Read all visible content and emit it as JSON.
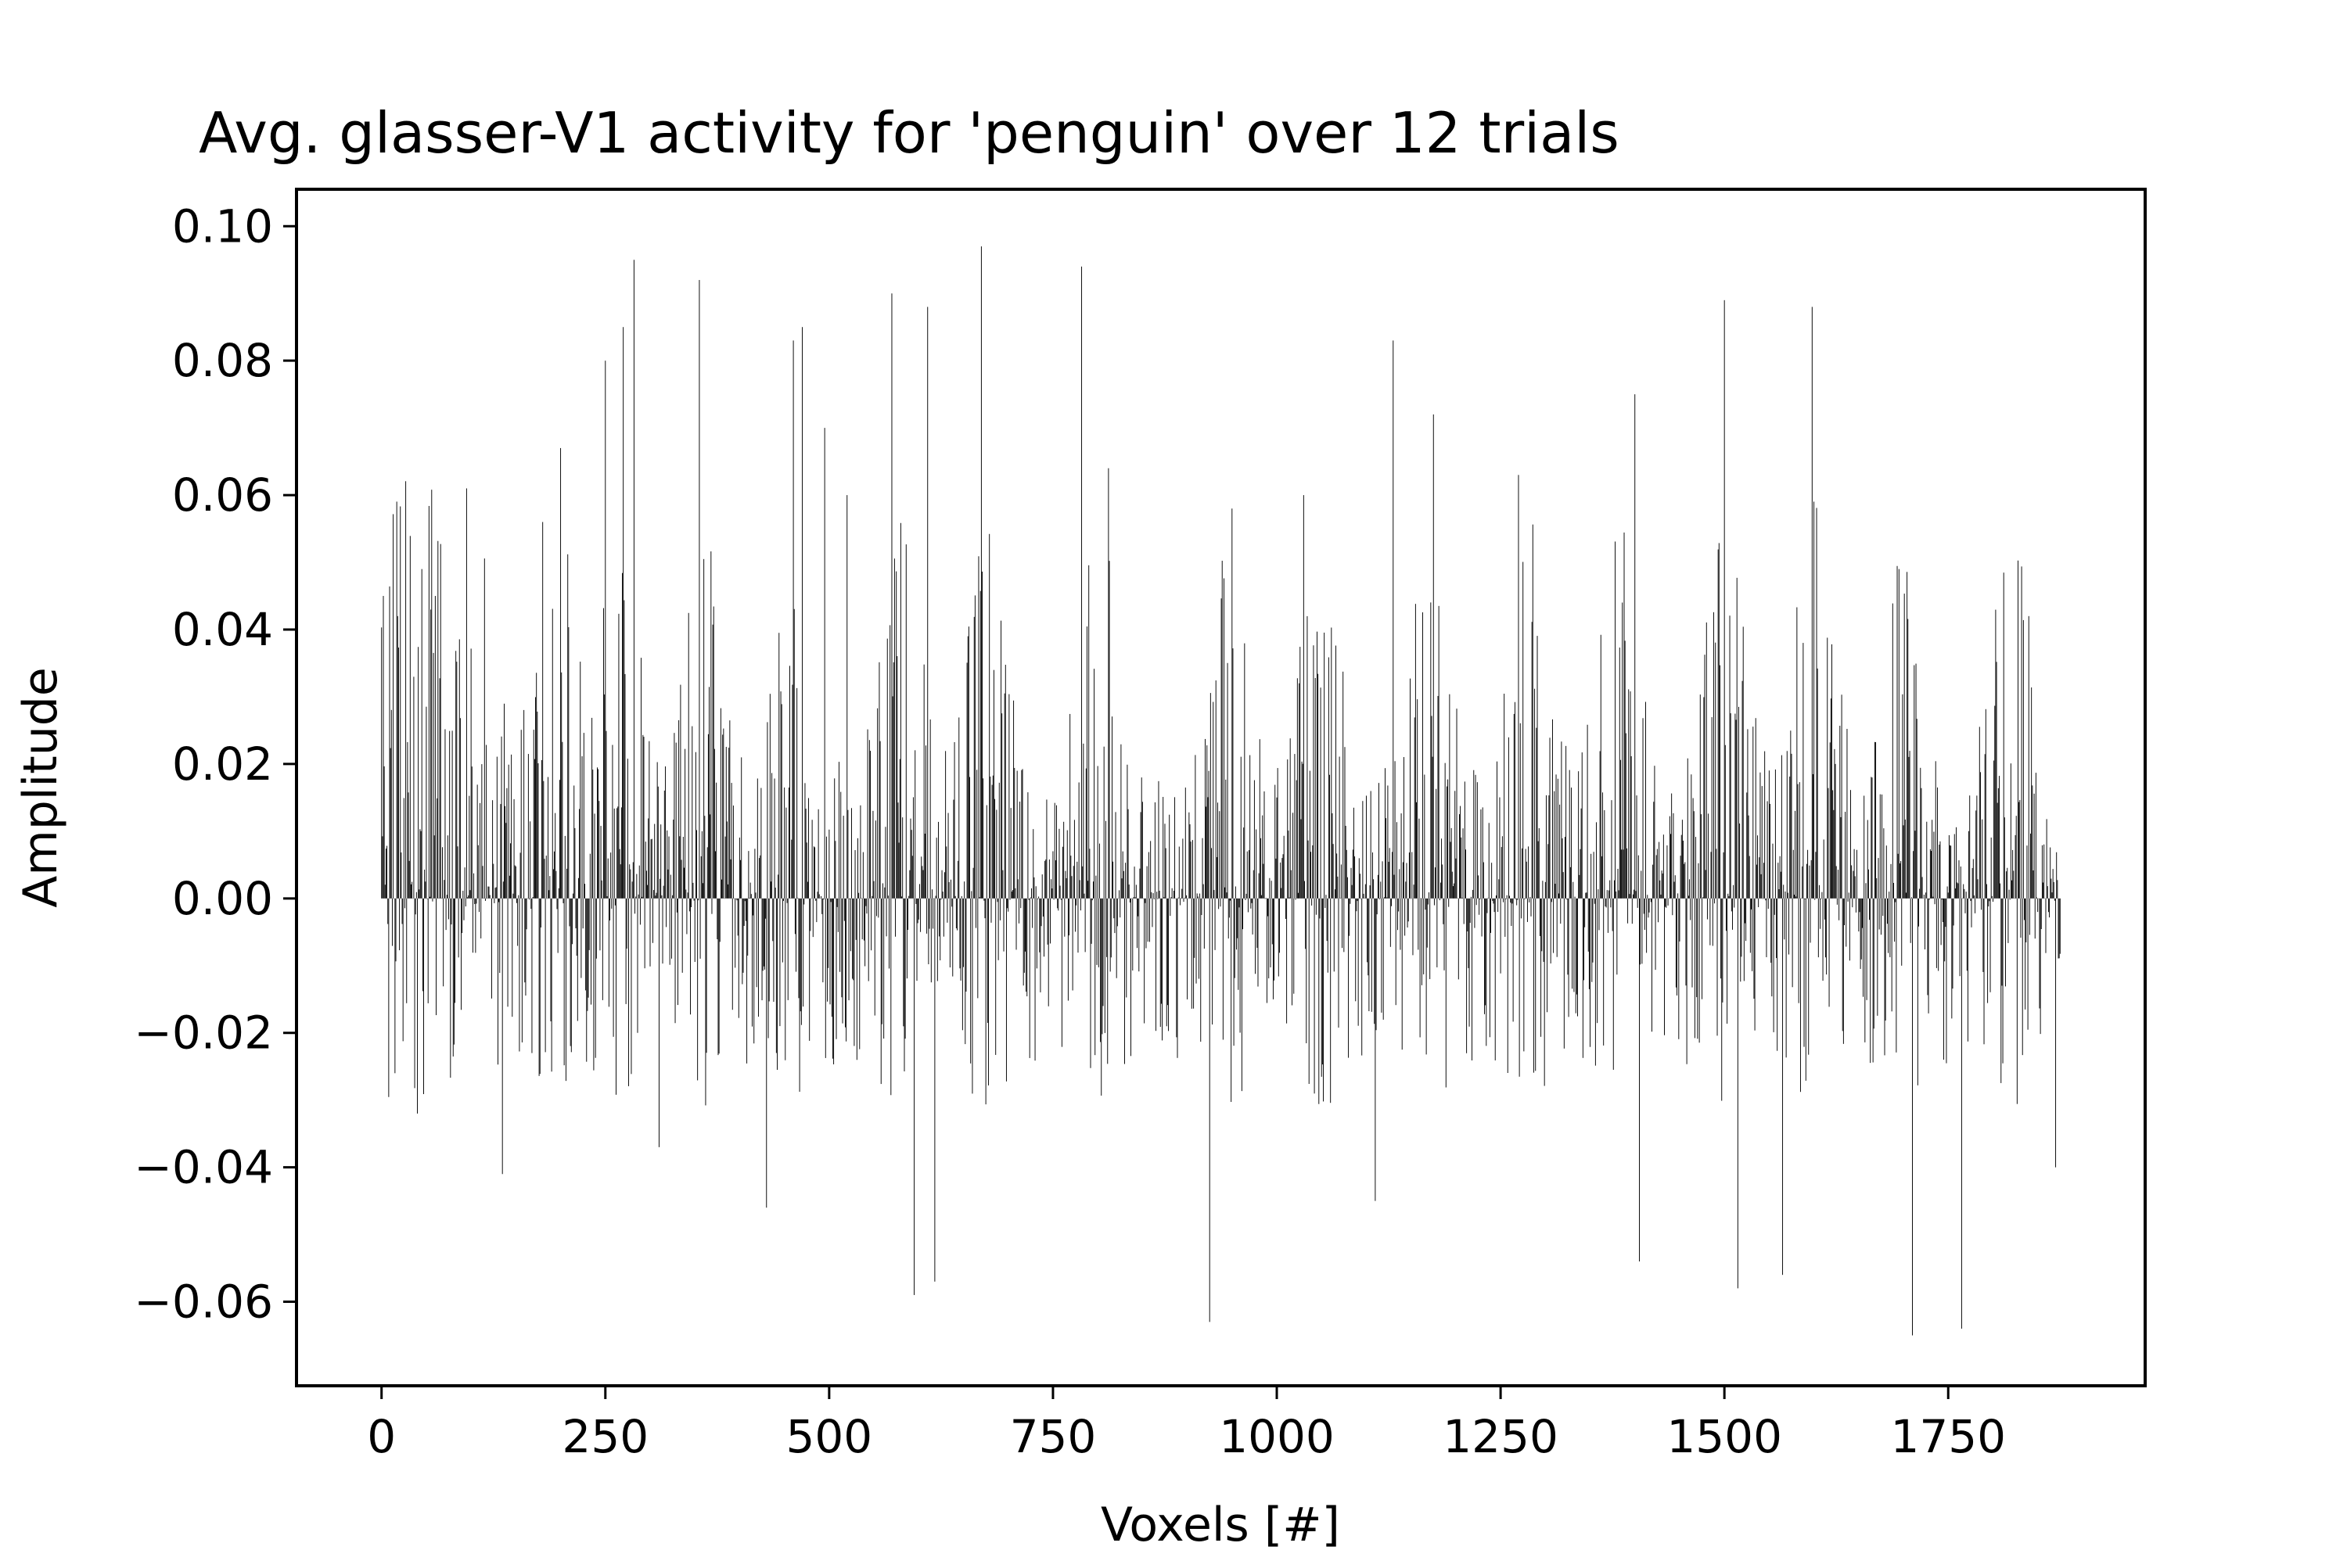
{
  "chart_data": {
    "type": "bar",
    "title": "Avg. glasser-V1 activity for 'penguin' over 12 trials",
    "xlabel": "Voxels [#]",
    "ylabel": "Amplitude",
    "n_voxels": 1876,
    "xlim": [
      -95,
      1970
    ],
    "ylim": [
      -0.0725,
      0.1055
    ],
    "xticks": [
      0,
      250,
      500,
      750,
      1000,
      1250,
      1500,
      1750
    ],
    "xtick_labels": [
      "0",
      "250",
      "500",
      "750",
      "1000",
      "1250",
      "1500",
      "1750"
    ],
    "yticks": [
      0.1,
      0.08,
      0.06,
      0.04,
      0.02,
      0.0,
      -0.02,
      -0.04,
      -0.06
    ],
    "ytick_labels": [
      "0.10",
      "0.08",
      "0.06",
      "0.04",
      "0.02",
      "0.00",
      "−0.02",
      "−0.04",
      "−0.06"
    ],
    "grid": false,
    "legend": "none",
    "bar_color": "#000000",
    "sampled_points": [
      {
        "x": 2,
        "y": 0.045
      },
      {
        "x": 18,
        "y": 0.042
      },
      {
        "x": 45,
        "y": 0.049
      },
      {
        "x": 60,
        "y": 0.045
      },
      {
        "x": 95,
        "y": 0.061
      },
      {
        "x": 180,
        "y": 0.056
      },
      {
        "x": 200,
        "y": 0.067
      },
      {
        "x": 250,
        "y": 0.08
      },
      {
        "x": 270,
        "y": 0.085
      },
      {
        "x": 282,
        "y": 0.095
      },
      {
        "x": 355,
        "y": 0.092
      },
      {
        "x": 460,
        "y": 0.083
      },
      {
        "x": 470,
        "y": 0.085
      },
      {
        "x": 495,
        "y": 0.07
      },
      {
        "x": 520,
        "y": 0.06
      },
      {
        "x": 570,
        "y": 0.09
      },
      {
        "x": 610,
        "y": 0.088
      },
      {
        "x": 670,
        "y": 0.097
      },
      {
        "x": 782,
        "y": 0.094
      },
      {
        "x": 812,
        "y": 0.064
      },
      {
        "x": 950,
        "y": 0.058
      },
      {
        "x": 1030,
        "y": 0.06
      },
      {
        "x": 1130,
        "y": 0.083
      },
      {
        "x": 1175,
        "y": 0.072
      },
      {
        "x": 1270,
        "y": 0.063
      },
      {
        "x": 1400,
        "y": 0.075
      },
      {
        "x": 1500,
        "y": 0.089
      },
      {
        "x": 1598,
        "y": 0.088
      },
      {
        "x": 1695,
        "y": 0.049
      },
      {
        "x": 1840,
        "y": 0.042
      },
      {
        "x": 15,
        "y": -0.026
      },
      {
        "x": 40,
        "y": -0.032
      },
      {
        "x": 135,
        "y": -0.041
      },
      {
        "x": 310,
        "y": -0.037
      },
      {
        "x": 430,
        "y": -0.046
      },
      {
        "x": 595,
        "y": -0.059
      },
      {
        "x": 618,
        "y": -0.057
      },
      {
        "x": 925,
        "y": -0.063
      },
      {
        "x": 1110,
        "y": -0.045
      },
      {
        "x": 1405,
        "y": -0.054
      },
      {
        "x": 1515,
        "y": -0.058
      },
      {
        "x": 1565,
        "y": -0.056
      },
      {
        "x": 1710,
        "y": -0.065
      },
      {
        "x": 1765,
        "y": -0.064
      },
      {
        "x": 1870,
        "y": -0.04
      }
    ]
  }
}
